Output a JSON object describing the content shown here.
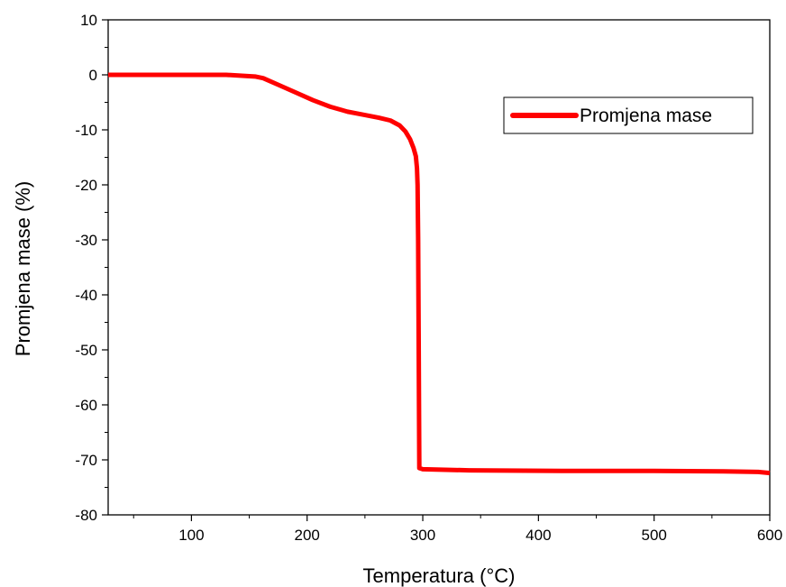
{
  "chart_data": {
    "type": "line",
    "title": "",
    "xlabel": "Temperatura (°C)",
    "ylabel": "Promjena mase (%)",
    "xlim": [
      28,
      600
    ],
    "ylim": [
      -80,
      10
    ],
    "x_ticks": [
      100,
      200,
      300,
      400,
      500,
      600
    ],
    "y_ticks": [
      10,
      0,
      -10,
      -20,
      -30,
      -40,
      -50,
      -60,
      -70,
      -80
    ],
    "grid": false,
    "legend_position": "top-right",
    "series": [
      {
        "name": "Promjena mase",
        "color": "#ff0000",
        "x": [
          28,
          60,
          100,
          130,
          155,
          162,
          175,
          190,
          205,
          220,
          235,
          250,
          262,
          272,
          280,
          285,
          289,
          292,
          294,
          295,
          295.5,
          296,
          296.5,
          297,
          300,
          340,
          420,
          500,
          560,
          590,
          600
        ],
        "y": [
          0,
          0,
          0,
          0,
          -0.3,
          -0.6,
          -1.8,
          -3.2,
          -4.6,
          -5.8,
          -6.7,
          -7.3,
          -7.8,
          -8.3,
          -9.2,
          -10.3,
          -11.7,
          -13.3,
          -14.8,
          -17,
          -20,
          -30,
          -50,
          -71.5,
          -71.7,
          -71.9,
          -72,
          -72,
          -72.1,
          -72.2,
          -72.4
        ]
      }
    ]
  }
}
